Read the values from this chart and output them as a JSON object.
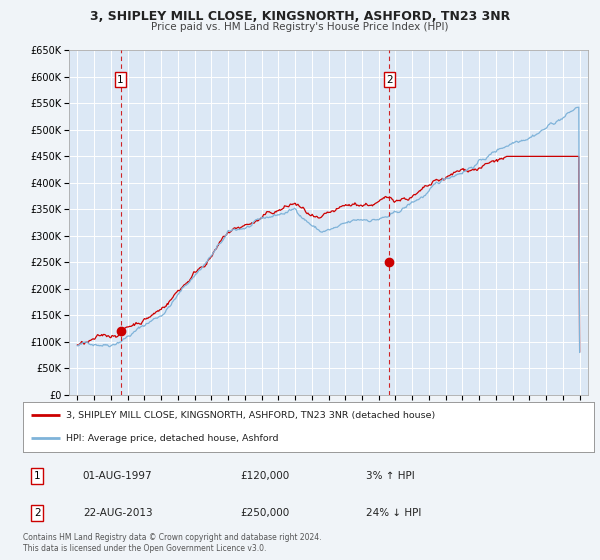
{
  "title": "3, SHIPLEY MILL CLOSE, KINGSNORTH, ASHFORD, TN23 3NR",
  "subtitle": "Price paid vs. HM Land Registry's House Price Index (HPI)",
  "bg_color": "#f0f4f8",
  "plot_bg_color": "#dce8f5",
  "grid_color": "#ffffff",
  "red_line_color": "#cc0000",
  "blue_line_color": "#7fb3d9",
  "marker1_date_x": 1997.58,
  "marker1_y": 120000,
  "marker2_date_x": 2013.64,
  "marker2_y": 250000,
  "vline1_x": 1997.58,
  "vline2_x": 2013.64,
  "ylim": [
    0,
    650000
  ],
  "xlim": [
    1994.5,
    2025.5
  ],
  "ytick_labels": [
    "£0",
    "£50K",
    "£100K",
    "£150K",
    "£200K",
    "£250K",
    "£300K",
    "£350K",
    "£400K",
    "£450K",
    "£500K",
    "£550K",
    "£600K",
    "£650K"
  ],
  "ytick_values": [
    0,
    50000,
    100000,
    150000,
    200000,
    250000,
    300000,
    350000,
    400000,
    450000,
    500000,
    550000,
    600000,
    650000
  ],
  "xtick_values": [
    1995,
    1996,
    1997,
    1998,
    1999,
    2000,
    2001,
    2002,
    2003,
    2004,
    2005,
    2006,
    2007,
    2008,
    2009,
    2010,
    2011,
    2012,
    2013,
    2014,
    2015,
    2016,
    2017,
    2018,
    2019,
    2020,
    2021,
    2022,
    2023,
    2024,
    2025
  ],
  "legend_label_red": "3, SHIPLEY MILL CLOSE, KINGSNORTH, ASHFORD, TN23 3NR (detached house)",
  "legend_label_blue": "HPI: Average price, detached house, Ashford",
  "sale1_label": "1",
  "sale1_date": "01-AUG-1997",
  "sale1_price": "£120,000",
  "sale1_hpi": "3% ↑ HPI",
  "sale2_label": "2",
  "sale2_date": "22-AUG-2013",
  "sale2_price": "£250,000",
  "sale2_hpi": "24% ↓ HPI",
  "footer": "Contains HM Land Registry data © Crown copyright and database right 2024.\nThis data is licensed under the Open Government Licence v3.0."
}
